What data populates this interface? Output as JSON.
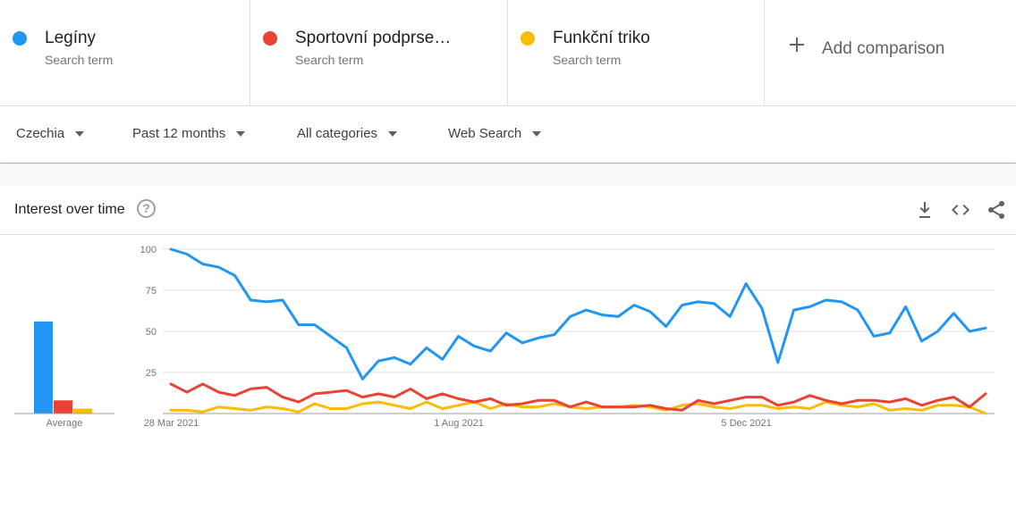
{
  "terms": [
    {
      "name": "Legíny",
      "sub": "Search term",
      "color": "#2196f3"
    },
    {
      "name": "Sportovní podprse…",
      "sub": "Search term",
      "color": "#ea4335"
    },
    {
      "name": "Funkční triko",
      "sub": "Search term",
      "color": "#fbbc04"
    }
  ],
  "add_comparison": "Add comparison",
  "filters": {
    "region": "Czechia",
    "period": "Past 12 months",
    "category": "All categories",
    "search_type": "Web Search"
  },
  "card": {
    "title": "Interest over time",
    "help_symbol": "?",
    "icons": [
      "download-icon",
      "embed-icon",
      "share-icon"
    ]
  },
  "chart_data": {
    "type": "line",
    "title": "Interest over time",
    "ylim": [
      0,
      100
    ],
    "yticks": [
      25,
      50,
      75,
      100
    ],
    "xtick_labels": [
      {
        "label": "28 Mar 2021",
        "index": 0
      },
      {
        "label": "1 Aug 2021",
        "index": 18
      },
      {
        "label": "5 Dec 2021",
        "index": 36
      }
    ],
    "grid": true,
    "series": [
      {
        "name": "Legíny",
        "color": "#2196f3",
        "values": [
          100,
          97,
          91,
          89,
          84,
          69,
          68,
          69,
          54,
          54,
          47,
          40,
          21,
          32,
          34,
          30,
          40,
          33,
          47,
          41,
          38,
          49,
          43,
          46,
          48,
          59,
          63,
          60,
          59,
          66,
          62,
          53,
          66,
          68,
          67,
          59,
          79,
          64,
          31,
          63,
          65,
          69,
          68,
          63,
          47,
          49,
          65,
          44,
          50,
          61,
          50,
          52
        ]
      },
      {
        "name": "Sportovní podprse…",
        "color": "#ea4335",
        "values": [
          18,
          13,
          18,
          13,
          11,
          15,
          16,
          10,
          7,
          12,
          13,
          14,
          10,
          12,
          10,
          15,
          9,
          12,
          9,
          7,
          9,
          5,
          6,
          8,
          8,
          4,
          7,
          4,
          4,
          4,
          5,
          3,
          2,
          8,
          6,
          8,
          10,
          10,
          5,
          7,
          11,
          8,
          6,
          8,
          8,
          7,
          9,
          5,
          8,
          10,
          4,
          12
        ]
      },
      {
        "name": "Funkční triko",
        "color": "#fbbc04",
        "values": [
          2,
          2,
          1,
          4,
          3,
          2,
          4,
          3,
          1,
          6,
          3,
          3,
          6,
          7,
          5,
          3,
          7,
          3,
          5,
          7,
          3,
          6,
          4,
          4,
          6,
          4,
          3,
          4,
          4,
          5,
          4,
          2,
          5,
          6,
          4,
          3,
          5,
          5,
          3,
          4,
          3,
          7,
          5,
          4,
          6,
          2,
          3,
          2,
          5,
          5,
          4,
          0
        ]
      }
    ],
    "average": {
      "label": "Average",
      "values": [
        56,
        8,
        3
      ]
    }
  }
}
